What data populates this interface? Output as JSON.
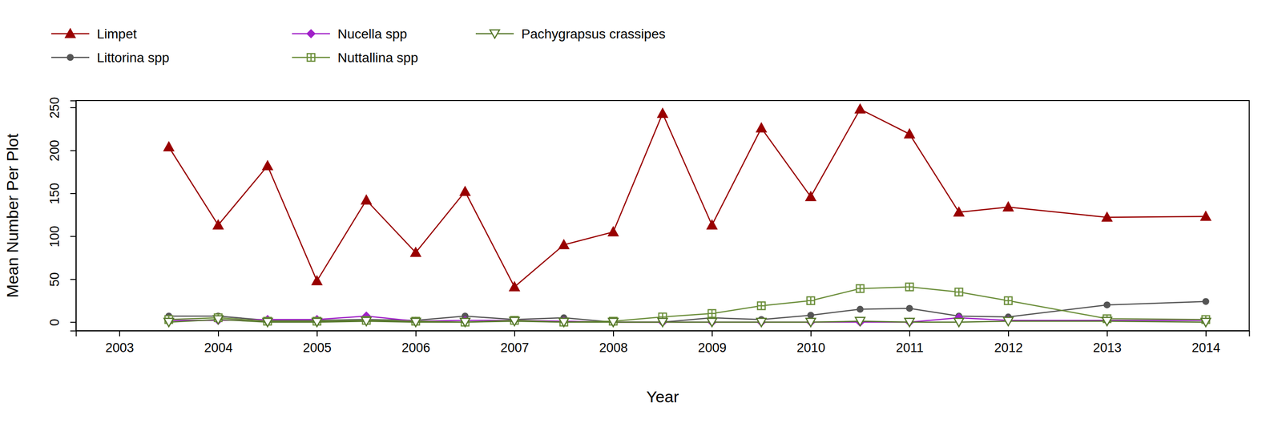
{
  "chart_data": {
    "type": "line",
    "x_label": "Year",
    "y_label": "Mean Number Per Plot",
    "x": [
      2003.5,
      2004,
      2004.5,
      2005,
      2005.5,
      2006,
      2006.5,
      2007,
      2007.5,
      2008,
      2008.5,
      2009,
      2009.5,
      2010,
      2010.5,
      2011,
      2011.5,
      2012,
      2013,
      2014
    ],
    "xlim": [
      2002.56,
      2014.44
    ],
    "xticks": [
      2003,
      2004,
      2005,
      2006,
      2007,
      2008,
      2009,
      2010,
      2011,
      2012,
      2013,
      2014
    ],
    "ylim": [
      -10,
      258
    ],
    "yticks": [
      0,
      50,
      100,
      150,
      200,
      250
    ],
    "grid": false,
    "legend": "top-left",
    "series": [
      {
        "name": "Limpet",
        "color": "#990000",
        "marker": "triangle-filled",
        "values": [
          204,
          113,
          182,
          48,
          142,
          81,
          152,
          41,
          90,
          105,
          243,
          113,
          226,
          146,
          248,
          219,
          128,
          134,
          122,
          123
        ]
      },
      {
        "name": "Littorina spp",
        "color": "#555555",
        "marker": "circle-filled",
        "values": [
          7,
          7,
          2,
          2,
          3,
          2,
          7,
          3,
          5,
          0,
          0,
          5,
          3,
          8,
          15,
          16,
          7,
          6,
          20,
          24
        ]
      },
      {
        "name": "Nucella spp",
        "color": "#a020c8",
        "marker": "diamond-filled",
        "values": [
          2,
          2,
          3,
          3,
          7,
          1,
          2,
          2,
          1,
          0,
          0,
          0,
          0,
          0,
          0,
          0,
          5,
          2,
          2,
          2
        ]
      },
      {
        "name": "Nuttallina spp",
        "color": "#6b8e3a",
        "marker": "square-plus",
        "values": [
          3,
          5,
          1,
          1,
          2,
          1,
          0,
          2,
          0,
          1,
          6,
          10,
          19,
          25,
          39,
          41,
          35,
          25,
          4,
          3
        ]
      },
      {
        "name": "Pachygrapsus crassipes",
        "color": "#55772a",
        "marker": "triangle-down-open",
        "values": [
          0,
          3,
          0,
          0,
          1,
          0,
          0,
          1,
          0,
          0,
          0,
          0,
          0,
          0,
          1,
          0,
          0,
          1,
          1,
          0
        ]
      }
    ]
  }
}
